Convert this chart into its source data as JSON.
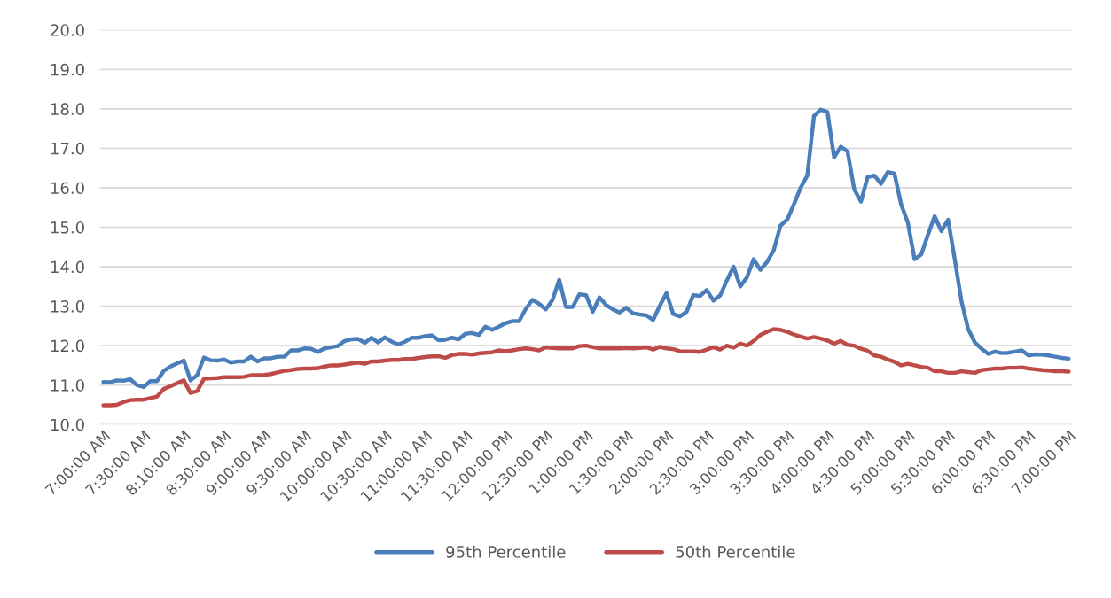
{
  "chart_data": {
    "type": "line",
    "categories": [
      "7:00:00 AM",
      null,
      null,
      null,
      null,
      null,
      "7:30:00 AM",
      null,
      null,
      null,
      null,
      null,
      "8:10:00 AM",
      null,
      null,
      null,
      null,
      null,
      "8:30:00 AM",
      null,
      null,
      null,
      null,
      null,
      "9:00:00 AM",
      null,
      null,
      null,
      null,
      null,
      "9:30:00 AM",
      null,
      null,
      null,
      null,
      null,
      "10:00:00 AM",
      null,
      null,
      null,
      null,
      null,
      "10:30:00 AM",
      null,
      null,
      null,
      null,
      null,
      "11:00:00 AM",
      null,
      null,
      null,
      null,
      null,
      "11:30:00 AM",
      null,
      null,
      null,
      null,
      null,
      "12:00:00 PM",
      null,
      null,
      null,
      null,
      null,
      "12:30:00 PM",
      null,
      null,
      null,
      null,
      null,
      "1:00:00 PM",
      null,
      null,
      null,
      null,
      null,
      "1:30:00 PM",
      null,
      null,
      null,
      null,
      null,
      "2:00:00 PM",
      null,
      null,
      null,
      null,
      null,
      "2:30:00 PM",
      null,
      null,
      null,
      null,
      null,
      "3:00:00 PM",
      null,
      null,
      null,
      null,
      null,
      "3:30:00 PM",
      null,
      null,
      null,
      null,
      null,
      "4:00:00 PM",
      null,
      null,
      null,
      null,
      null,
      "4:30:00 PM",
      null,
      null,
      null,
      null,
      null,
      "5:00:00 PM",
      null,
      null,
      null,
      null,
      null,
      "5:30:00 PM",
      null,
      null,
      null,
      null,
      null,
      "6:00:00 PM",
      null,
      null,
      null,
      null,
      null,
      "6:30:00 PM",
      null,
      null,
      null,
      null,
      null,
      "7:00:00 PM"
    ],
    "series": [
      {
        "name": "95th Percentile",
        "color": "#4a7ebb",
        "values": [
          11.08,
          11.07,
          11.12,
          11.11,
          11.15,
          11.0,
          10.95,
          11.1,
          11.1,
          11.36,
          11.47,
          11.55,
          11.62,
          11.12,
          11.25,
          11.7,
          11.63,
          11.62,
          11.65,
          11.57,
          11.6,
          11.6,
          11.72,
          11.6,
          11.68,
          11.68,
          11.72,
          11.72,
          11.88,
          11.88,
          11.93,
          11.92,
          11.84,
          11.93,
          11.96,
          11.99,
          12.12,
          12.16,
          12.17,
          12.07,
          12.2,
          12.08,
          12.21,
          12.1,
          12.03,
          12.1,
          12.2,
          12.2,
          12.24,
          12.26,
          12.14,
          12.15,
          12.2,
          12.16,
          12.3,
          12.32,
          12.27,
          12.48,
          12.4,
          12.48,
          12.57,
          12.62,
          12.62,
          12.93,
          13.16,
          13.06,
          12.92,
          13.16,
          13.67,
          12.98,
          12.98,
          13.3,
          13.28,
          12.86,
          13.22,
          13.03,
          12.92,
          12.84,
          12.96,
          12.82,
          12.79,
          12.77,
          12.65,
          13.01,
          13.33,
          12.8,
          12.74,
          12.86,
          13.28,
          13.26,
          13.41,
          13.14,
          13.27,
          13.65,
          14.0,
          13.5,
          13.73,
          14.19,
          13.92,
          14.12,
          14.42,
          15.04,
          15.19,
          15.58,
          16.0,
          16.31,
          17.82,
          17.98,
          17.92,
          16.77,
          17.04,
          16.92,
          15.96,
          15.65,
          16.27,
          16.31,
          16.1,
          16.4,
          16.36,
          15.58,
          15.12,
          14.19,
          14.31,
          14.81,
          15.28,
          14.9,
          15.19,
          14.19,
          13.12,
          12.42,
          12.08,
          11.92,
          11.79,
          11.85,
          11.81,
          11.82,
          11.85,
          11.88,
          11.75,
          11.78,
          11.77,
          11.75,
          11.72,
          11.69,
          11.67
        ]
      },
      {
        "name": "50th Percentile",
        "color": "#be4b48",
        "values": [
          10.49,
          10.49,
          10.5,
          10.57,
          10.62,
          10.63,
          10.63,
          10.67,
          10.71,
          10.9,
          10.97,
          11.05,
          11.12,
          10.8,
          10.85,
          11.16,
          11.17,
          11.18,
          11.2,
          11.2,
          11.2,
          11.21,
          11.25,
          11.25,
          11.26,
          11.28,
          11.32,
          11.36,
          11.38,
          11.41,
          11.42,
          11.42,
          11.43,
          11.47,
          11.5,
          11.5,
          11.52,
          11.55,
          11.57,
          11.54,
          11.6,
          11.6,
          11.62,
          11.64,
          11.64,
          11.66,
          11.66,
          11.69,
          11.71,
          11.73,
          11.73,
          11.69,
          11.76,
          11.79,
          11.79,
          11.77,
          11.8,
          11.82,
          11.83,
          11.88,
          11.86,
          11.88,
          11.91,
          11.93,
          11.91,
          11.88,
          11.96,
          11.94,
          11.93,
          11.93,
          11.93,
          11.99,
          12.0,
          11.96,
          11.93,
          11.93,
          11.93,
          11.93,
          11.94,
          11.93,
          11.94,
          11.96,
          11.9,
          11.97,
          11.93,
          11.91,
          11.86,
          11.85,
          11.85,
          11.84,
          11.9,
          11.96,
          11.9,
          12.0,
          11.95,
          12.05,
          12.0,
          12.12,
          12.27,
          12.35,
          12.42,
          12.4,
          12.35,
          12.28,
          12.23,
          12.18,
          12.22,
          12.18,
          12.13,
          12.05,
          12.12,
          12.02,
          12.0,
          11.92,
          11.87,
          11.75,
          11.72,
          11.65,
          11.59,
          11.5,
          11.54,
          11.5,
          11.46,
          11.44,
          11.35,
          11.35,
          11.31,
          11.31,
          11.35,
          11.33,
          11.31,
          11.38,
          11.4,
          11.42,
          11.42,
          11.44,
          11.44,
          11.45,
          11.42,
          11.4,
          11.38,
          11.37,
          11.35,
          11.35,
          11.34
        ]
      }
    ],
    "ylim": [
      10,
      20
    ],
    "yticks": [
      {
        "value": 10,
        "label": "10.0"
      },
      {
        "value": 11,
        "label": "11.0"
      },
      {
        "value": 12,
        "label": "12.0"
      },
      {
        "value": 13,
        "label": "13.0"
      },
      {
        "value": 14,
        "label": "14.0"
      },
      {
        "value": 15,
        "label": "15.0"
      },
      {
        "value": 16,
        "label": "16.0"
      },
      {
        "value": 17,
        "label": "17.0"
      },
      {
        "value": 18,
        "label": "18.0"
      },
      {
        "value": 19,
        "label": "19.0"
      },
      {
        "value": 20,
        "label": "20.0"
      }
    ],
    "grid": "y",
    "legend": "bottom"
  }
}
